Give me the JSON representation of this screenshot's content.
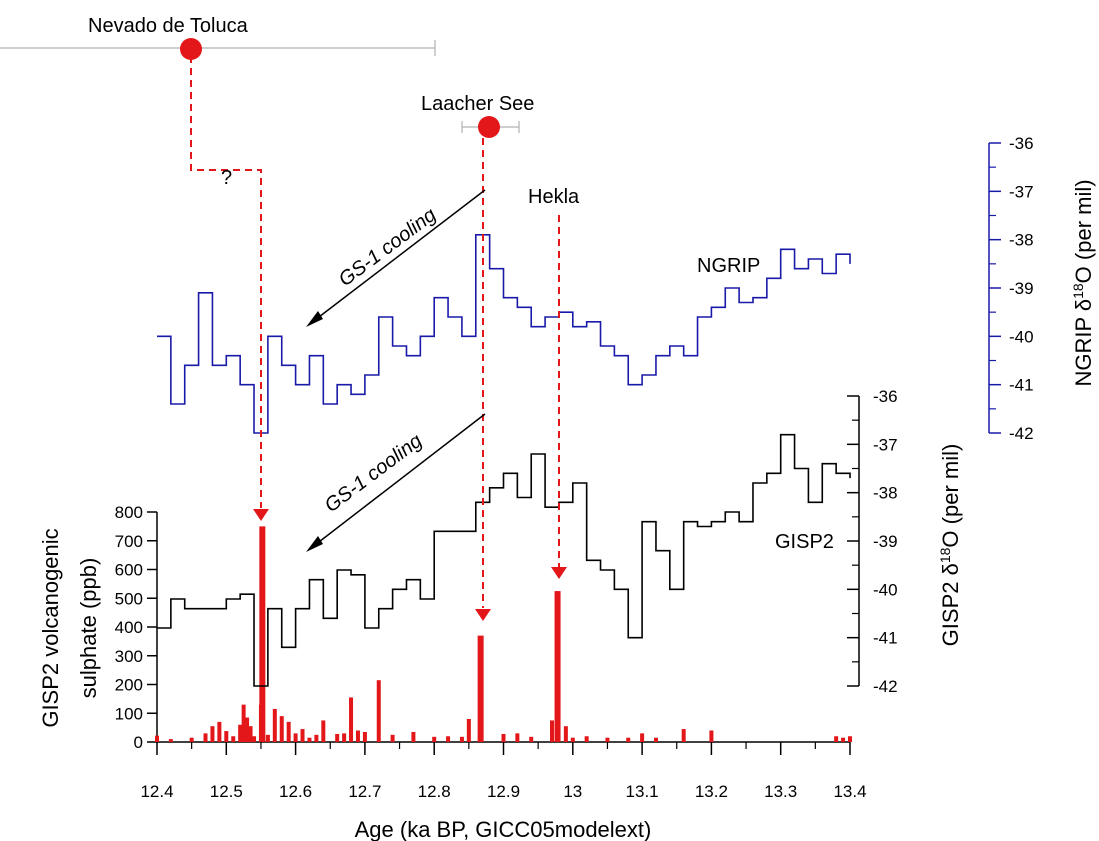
{
  "chart_data": {
    "type": "line",
    "x_axis": {
      "label": "Age (ka BP, GICC05modelext)",
      "range": [
        12.4,
        13.4
      ],
      "ticks": [
        "12.4",
        "12.5",
        "12.6",
        "12.7",
        "12.8",
        "12.9",
        "13",
        "13.1",
        "13.2",
        "13.3",
        "13.4"
      ]
    },
    "sulphate_axis": {
      "label": "GISP2 volcanogenic sulphate (ppb)",
      "range": [
        0,
        800
      ],
      "ticks": [
        "0",
        "100",
        "200",
        "300",
        "400",
        "500",
        "600",
        "700",
        "800"
      ]
    },
    "gisp2_axis": {
      "label_main": "GISP2 δ",
      "label_sup": "18",
      "label_tail": "O (per mil)",
      "range": [
        -42,
        -36
      ],
      "ticks": [
        "-36",
        "-37",
        "-38",
        "-39",
        "-40",
        "-41",
        "-42"
      ]
    },
    "ngrip_axis": {
      "label_main": "NGRIP δ",
      "label_sup": "18",
      "label_tail": "O (per mil)",
      "range": [
        -42,
        -36
      ],
      "ticks": [
        "-36",
        "-37",
        "-38",
        "-39",
        "-40",
        "-41",
        "-42"
      ]
    },
    "series": [
      {
        "name": "NGRIP",
        "color": "#1a1aaa",
        "x": [
          12.4,
          12.42,
          12.44,
          12.46,
          12.48,
          12.5,
          12.52,
          12.54,
          12.56,
          12.58,
          12.6,
          12.62,
          12.64,
          12.66,
          12.68,
          12.7,
          12.72,
          12.74,
          12.76,
          12.78,
          12.8,
          12.82,
          12.84,
          12.86,
          12.88,
          12.9,
          12.92,
          12.94,
          12.96,
          12.98,
          13.0,
          13.02,
          13.04,
          13.06,
          13.08,
          13.1,
          13.12,
          13.14,
          13.16,
          13.18,
          13.2,
          13.22,
          13.24,
          13.26,
          13.28,
          13.3,
          13.32,
          13.34,
          13.36,
          13.38,
          13.4
        ],
        "values": [
          -40,
          -41.4,
          -40.6,
          -39.1,
          -40.6,
          -40.4,
          -41,
          -42,
          -40,
          -40.6,
          -41,
          -40.4,
          -41.4,
          -41,
          -41.2,
          -40.8,
          -39.6,
          -40.2,
          -40.4,
          -40,
          -39.2,
          -39.6,
          -40,
          -37.9,
          -38.6,
          -39.2,
          -39.4,
          -39.8,
          -39.6,
          -39.5,
          -39.8,
          -39.7,
          -40.2,
          -40.4,
          -41,
          -40.8,
          -40.4,
          -40.2,
          -40.4,
          -39.6,
          -39.4,
          -39,
          -39.3,
          -39.2,
          -38.8,
          -38.2,
          -38.6,
          -38.4,
          -38.7,
          -38.3,
          -38.5
        ]
      },
      {
        "name": "GISP2",
        "color": "#000000",
        "x": [
          12.4,
          12.42,
          12.44,
          12.46,
          12.48,
          12.5,
          12.52,
          12.54,
          12.56,
          12.58,
          12.6,
          12.62,
          12.64,
          12.66,
          12.68,
          12.7,
          12.72,
          12.74,
          12.76,
          12.78,
          12.8,
          12.82,
          12.84,
          12.86,
          12.88,
          12.9,
          12.92,
          12.94,
          12.96,
          12.98,
          13.0,
          13.02,
          13.04,
          13.06,
          13.08,
          13.1,
          13.12,
          13.14,
          13.16,
          13.18,
          13.2,
          13.22,
          13.24,
          13.26,
          13.28,
          13.3,
          13.32,
          13.34,
          13.36,
          13.38,
          13.4
        ],
        "values": [
          -40.8,
          -40.2,
          -40.4,
          -40.4,
          -40.4,
          -40.2,
          -40.1,
          -42,
          -40.4,
          -41.2,
          -40.4,
          -39.8,
          -40.6,
          -39.6,
          -39.7,
          -40.8,
          -40.4,
          -40,
          -39.8,
          -40.2,
          -38.8,
          -38.8,
          -38.8,
          -38.2,
          -37.9,
          -37.6,
          -38.1,
          -37.2,
          -38.3,
          -38.2,
          -37.8,
          -39.4,
          -39.6,
          -40,
          -41,
          -38.6,
          -39.2,
          -40,
          -38.6,
          -38.7,
          -38.6,
          -38.4,
          -38.6,
          -37.8,
          -37.6,
          -36.8,
          -37.5,
          -38.2,
          -37.4,
          -37.6,
          -37.7
        ]
      }
    ],
    "sulphate_bars": {
      "name": "GISP2 volcanogenic sulphate",
      "color": "#e3161a",
      "x": [
        12.4,
        12.42,
        12.45,
        12.47,
        12.48,
        12.49,
        12.5,
        12.51,
        12.52,
        12.525,
        12.53,
        12.535,
        12.54,
        12.55,
        12.552,
        12.56,
        12.57,
        12.58,
        12.59,
        12.6,
        12.61,
        12.62,
        12.63,
        12.64,
        12.66,
        12.67,
        12.68,
        12.69,
        12.7,
        12.72,
        12.74,
        12.77,
        12.8,
        12.82,
        12.84,
        12.85,
        12.867,
        12.9,
        12.92,
        12.94,
        12.97,
        12.978,
        12.99,
        13.0,
        13.02,
        13.05,
        13.08,
        13.1,
        13.12,
        13.16,
        13.2,
        13.38,
        13.39,
        13.4
      ],
      "values": [
        22,
        10,
        15,
        30,
        55,
        70,
        38,
        20,
        60,
        130,
        85,
        55,
        20,
        130,
        750,
        25,
        115,
        90,
        70,
        30,
        45,
        15,
        25,
        75,
        28,
        30,
        155,
        40,
        35,
        215,
        25,
        35,
        18,
        20,
        18,
        80,
        370,
        28,
        30,
        18,
        75,
        525,
        55,
        15,
        20,
        15,
        15,
        30,
        15,
        45,
        40,
        20,
        15,
        20
      ]
    },
    "annotations": {
      "nevado": "Nevado de Toluca",
      "laacher": "Laacher See",
      "hekla": "Hekla",
      "question": "?",
      "cooling_upper": "GS-1 cooling",
      "cooling_lower": "GS-1 cooling",
      "ngrip_label": "NGRIP",
      "gisp2_label": "GISP2"
    },
    "colors": {
      "ngrip": "#1a1aaa",
      "gisp2": "#000000",
      "volcanic": "#e3161a"
    }
  }
}
